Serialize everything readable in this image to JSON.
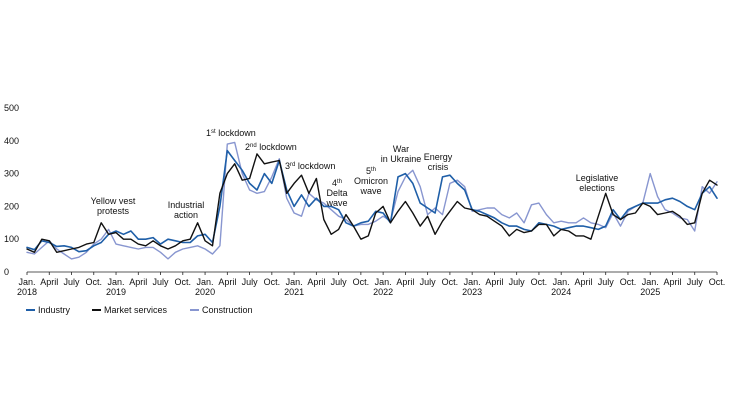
{
  "chart_data": {
    "type": "line",
    "y_axis_label": "",
    "ylim": [
      0,
      500
    ],
    "y_ticks": [
      "0",
      "100",
      "200",
      "300",
      "400",
      "500"
    ],
    "grid": false,
    "legend_placement": "bottom-left",
    "x_tick_labels": [
      {
        "month_index": 0,
        "lines": [
          "Jan.",
          "2018"
        ]
      },
      {
        "month_index": 3,
        "lines": [
          "April"
        ]
      },
      {
        "month_index": 6,
        "lines": [
          "July"
        ]
      },
      {
        "month_index": 9,
        "lines": [
          "Oct."
        ]
      },
      {
        "month_index": 12,
        "lines": [
          "Jan.",
          "2019"
        ]
      },
      {
        "month_index": 15,
        "lines": [
          "April"
        ]
      },
      {
        "month_index": 18,
        "lines": [
          "July"
        ]
      },
      {
        "month_index": 21,
        "lines": [
          "Oct."
        ]
      },
      {
        "month_index": 24,
        "lines": [
          "Jan.",
          "2020"
        ]
      },
      {
        "month_index": 27,
        "lines": [
          "April"
        ]
      },
      {
        "month_index": 30,
        "lines": [
          "July"
        ]
      },
      {
        "month_index": 33,
        "lines": [
          "Oct."
        ]
      },
      {
        "month_index": 36,
        "lines": [
          "Jan.",
          "2021"
        ]
      },
      {
        "month_index": 39,
        "lines": [
          "April"
        ]
      },
      {
        "month_index": 42,
        "lines": [
          "July"
        ]
      },
      {
        "month_index": 45,
        "lines": [
          "Oct."
        ]
      },
      {
        "month_index": 48,
        "lines": [
          "Jan.",
          "2022"
        ]
      },
      {
        "month_index": 51,
        "lines": [
          "April"
        ]
      },
      {
        "month_index": 54,
        "lines": [
          "July"
        ]
      },
      {
        "month_index": 57,
        "lines": [
          "Oct."
        ]
      },
      {
        "month_index": 60,
        "lines": [
          "Jan.",
          "2023"
        ]
      },
      {
        "month_index": 63,
        "lines": [
          "April"
        ]
      },
      {
        "month_index": 66,
        "lines": [
          "July"
        ]
      },
      {
        "month_index": 69,
        "lines": [
          "Oct."
        ]
      },
      {
        "month_index": 72,
        "lines": [
          "Jan.",
          "2024"
        ]
      },
      {
        "month_index": 75,
        "lines": [
          "April"
        ]
      },
      {
        "month_index": 78,
        "lines": [
          "July"
        ]
      },
      {
        "month_index": 81,
        "lines": [
          "Oct."
        ]
      },
      {
        "month_index": 84,
        "lines": [
          "Jan.",
          "2025"
        ]
      },
      {
        "month_index": 87,
        "lines": [
          "April"
        ]
      },
      {
        "month_index": 90,
        "lines": [
          "July"
        ]
      },
      {
        "month_index": 93,
        "lines": [
          "Oct."
        ]
      }
    ],
    "x": [
      "2018-01",
      "2018-02",
      "2018-03",
      "2018-04",
      "2018-05",
      "2018-06",
      "2018-07",
      "2018-08",
      "2018-09",
      "2018-10",
      "2018-11",
      "2018-12",
      "2019-01",
      "2019-02",
      "2019-03",
      "2019-04",
      "2019-05",
      "2019-06",
      "2019-07",
      "2019-08",
      "2019-09",
      "2019-10",
      "2019-11",
      "2019-12",
      "2020-01",
      "2020-02",
      "2020-03",
      "2020-04",
      "2020-05",
      "2020-06",
      "2020-07",
      "2020-08",
      "2020-09",
      "2020-10",
      "2020-11",
      "2020-12",
      "2021-01",
      "2021-02",
      "2021-03",
      "2021-04",
      "2021-05",
      "2021-06",
      "2021-07",
      "2021-08",
      "2021-09",
      "2021-10",
      "2021-11",
      "2021-12",
      "2022-01",
      "2022-02",
      "2022-03",
      "2022-04",
      "2022-05",
      "2022-06",
      "2022-07",
      "2022-08",
      "2022-09",
      "2022-10",
      "2022-11",
      "2022-12",
      "2023-01",
      "2023-02",
      "2023-03",
      "2023-04",
      "2023-05",
      "2023-06",
      "2023-07",
      "2023-08",
      "2023-09",
      "2023-10",
      "2023-11",
      "2023-12",
      "2024-01",
      "2024-02",
      "2024-03",
      "2024-04",
      "2024-05",
      "2024-06",
      "2024-07",
      "2024-08",
      "2024-09",
      "2024-10",
      "2024-11",
      "2024-12",
      "2025-01",
      "2025-02",
      "2025-03",
      "2025-04",
      "2025-05",
      "2025-06",
      "2025-07",
      "2025-08",
      "2025-09",
      "2025-10"
    ],
    "series": [
      {
        "name": "Industry",
        "color": "#1f5fa8",
        "width": 1.6,
        "values": [
          75,
          68,
          95,
          90,
          78,
          80,
          75,
          62,
          65,
          80,
          90,
          115,
          125,
          115,
          125,
          100,
          100,
          105,
          85,
          100,
          95,
          90,
          90,
          110,
          115,
          90,
          200,
          370,
          340,
          310,
          270,
          250,
          300,
          270,
          340,
          250,
          200,
          235,
          200,
          225,
          200,
          200,
          190,
          150,
          140,
          150,
          155,
          185,
          180,
          150,
          290,
          300,
          270,
          210,
          195,
          180,
          290,
          295,
          270,
          250,
          190,
          185,
          175,
          165,
          150,
          140,
          140,
          130,
          125,
          150,
          145,
          140,
          130,
          135,
          140,
          140,
          135,
          130,
          140,
          190,
          160,
          190,
          200,
          210,
          210,
          210,
          220,
          225,
          215,
          200,
          190,
          240,
          260,
          225
        ]
      },
      {
        "name": "Market services",
        "color": "#111111",
        "width": 1.4,
        "values": [
          70,
          60,
          100,
          95,
          60,
          65,
          70,
          75,
          85,
          90,
          150,
          115,
          120,
          100,
          100,
          85,
          80,
          95,
          80,
          70,
          80,
          95,
          100,
          150,
          95,
          80,
          240,
          300,
          330,
          280,
          285,
          360,
          330,
          335,
          340,
          240,
          270,
          295,
          240,
          285,
          160,
          115,
          130,
          175,
          140,
          100,
          110,
          180,
          200,
          150,
          185,
          215,
          180,
          140,
          170,
          115,
          155,
          185,
          215,
          195,
          190,
          175,
          170,
          155,
          140,
          110,
          130,
          120,
          125,
          145,
          145,
          110,
          130,
          125,
          110,
          110,
          100,
          170,
          240,
          175,
          160,
          175,
          180,
          210,
          200,
          175,
          180,
          185,
          170,
          145,
          150,
          240,
          280,
          265
        ]
      },
      {
        "name": "Construction",
        "color": "#8896d0",
        "width": 1.4,
        "values": [
          60,
          55,
          75,
          95,
          70,
          55,
          40,
          45,
          60,
          85,
          100,
          130,
          85,
          80,
          75,
          70,
          75,
          75,
          60,
          40,
          60,
          70,
          75,
          80,
          70,
          55,
          80,
          390,
          395,
          300,
          250,
          240,
          245,
          290,
          345,
          225,
          180,
          170,
          240,
          220,
          210,
          190,
          170,
          160,
          140,
          145,
          145,
          155,
          170,
          155,
          245,
          290,
          310,
          260,
          175,
          195,
          175,
          270,
          280,
          260,
          185,
          190,
          195,
          195,
          175,
          165,
          180,
          150,
          205,
          210,
          175,
          150,
          155,
          150,
          150,
          165,
          150,
          145,
          135,
          180,
          140,
          185,
          200,
          210,
          300,
          230,
          190,
          180,
          165,
          160,
          125,
          260,
          240,
          275
        ]
      }
    ],
    "legend": [
      "Industry",
      "Market services",
      "Construction"
    ],
    "annotations": [
      {
        "id": "yellow-vest",
        "lines": [
          "Yellow vest",
          "protests"
        ]
      },
      {
        "id": "industrial-action",
        "lines": [
          "Industrial",
          "action"
        ]
      },
      {
        "id": "lockdown-1",
        "lines": [
          "1st lockdown"
        ],
        "num": "1",
        "sup": "st",
        "rest": " lockdown"
      },
      {
        "id": "lockdown-2",
        "lines": [
          "2nd lockdown"
        ],
        "num": "2",
        "sup": "nd",
        "rest": " lockdown"
      },
      {
        "id": "lockdown-3",
        "lines": [
          "3rd lockdown"
        ],
        "num": "3",
        "sup": "rd",
        "rest": " lockdown"
      },
      {
        "id": "delta-wave",
        "lines": [
          "4th",
          "Delta",
          "wave"
        ],
        "num": "4",
        "sup": "th"
      },
      {
        "id": "omicron-wave",
        "lines": [
          "5th",
          "Omicron",
          "wave"
        ],
        "num": "5",
        "sup": "th"
      },
      {
        "id": "war-ukraine",
        "lines": [
          "War",
          "in Ukraine"
        ]
      },
      {
        "id": "energy-crisis",
        "lines": [
          "Energy",
          "crisis"
        ]
      },
      {
        "id": "legislative-elections",
        "lines": [
          "Legislative",
          "elections"
        ]
      }
    ]
  }
}
